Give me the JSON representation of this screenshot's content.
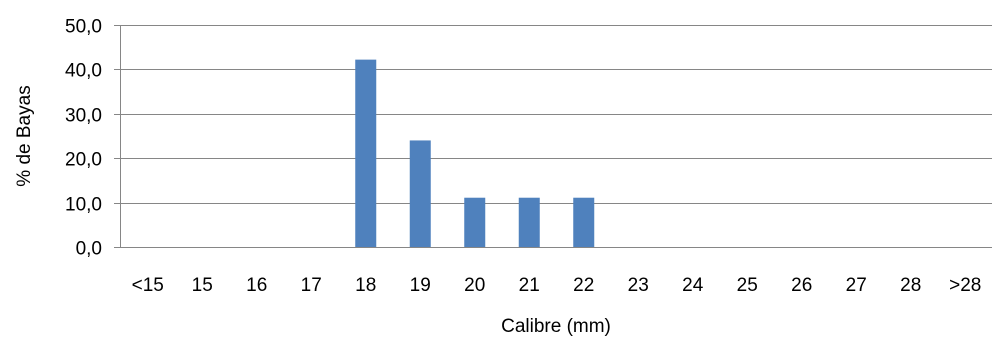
{
  "chart_data": {
    "type": "bar",
    "categories": [
      "<15",
      "15",
      "16",
      "17",
      "18",
      "19",
      "20",
      "21",
      "22",
      "23",
      "24",
      "25",
      "26",
      "27",
      "28",
      ">28"
    ],
    "values": [
      0,
      0,
      0,
      0,
      42.2,
      24.0,
      11.1,
      11.1,
      11.1,
      0,
      0,
      0,
      0,
      0,
      0,
      0
    ],
    "title": "",
    "xlabel": "Calibre (mm)",
    "ylabel": "% de Bayas",
    "ylim": [
      0,
      50
    ],
    "yticks": [
      0,
      10,
      20,
      30,
      40,
      50
    ],
    "ytick_labels": [
      "0,0",
      "10,0",
      "20,0",
      "30,0",
      "40,0",
      "50,0"
    ],
    "grid": true,
    "legend": "none",
    "bar_color": "#4F81BD",
    "grid_color": "#868686"
  }
}
